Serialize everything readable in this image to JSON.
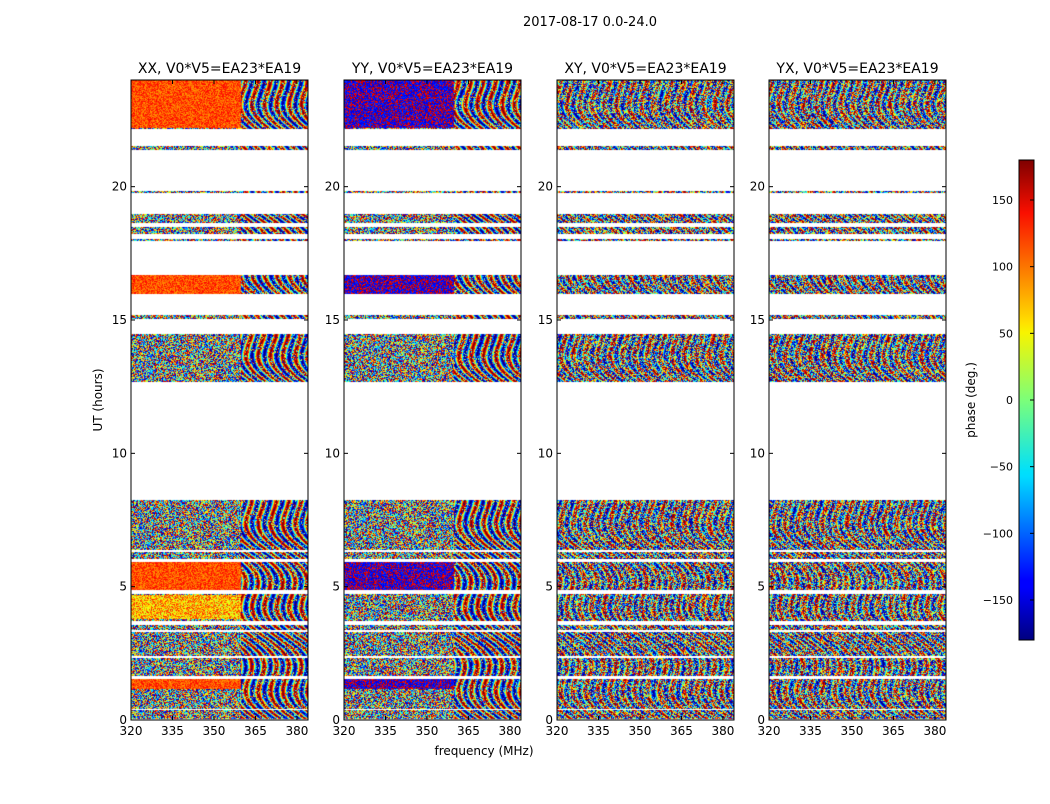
{
  "chart_data": {
    "type": "heatmap",
    "title": "2017-08-17 0.0-24.0",
    "xlabel": "frequency (MHz)",
    "ylabel": "UT (hours)",
    "xlim": [
      320,
      384
    ],
    "ylim": [
      0,
      24
    ],
    "x_ticks": [
      320,
      335,
      350,
      365,
      380
    ],
    "y_ticks": [
      0,
      5,
      10,
      15,
      20
    ],
    "panels": [
      {
        "title": "XX, V0*V5=EA23*EA19",
        "pattern": "xx"
      },
      {
        "title": "YY, V0*V5=EA23*EA19",
        "pattern": "yy"
      },
      {
        "title": "XY, V0*V5=EA23*EA19",
        "pattern": "noise"
      },
      {
        "title": "YX, V0*V5=EA23*EA19",
        "pattern": "noise"
      }
    ],
    "data_time_ranges_hours": [
      [
        0.05,
        0.4
      ],
      [
        0.45,
        1.55
      ],
      [
        1.65,
        2.35
      ],
      [
        2.4,
        3.3
      ],
      [
        3.4,
        3.6
      ],
      [
        3.75,
        4.75
      ],
      [
        4.9,
        5.95
      ],
      [
        6.05,
        6.3
      ],
      [
        6.4,
        8.25
      ],
      [
        12.7,
        14.5
      ],
      [
        15.05,
        15.2
      ],
      [
        16.0,
        16.7
      ],
      [
        18.0,
        18.05
      ],
      [
        18.25,
        18.5
      ],
      [
        18.65,
        19.0
      ],
      [
        19.8,
        19.85
      ],
      [
        21.4,
        21.55
      ],
      [
        22.2,
        24.0
      ]
    ],
    "colorbar": {
      "label": "phase (deg.)",
      "range": [
        -180,
        180
      ],
      "ticks": [
        150,
        100,
        50,
        0,
        -50,
        -100,
        -150
      ],
      "tick_labels": [
        "150",
        "100",
        "50",
        "0",
        "−50",
        "−100",
        "−150"
      ],
      "colormap": "jet"
    }
  }
}
